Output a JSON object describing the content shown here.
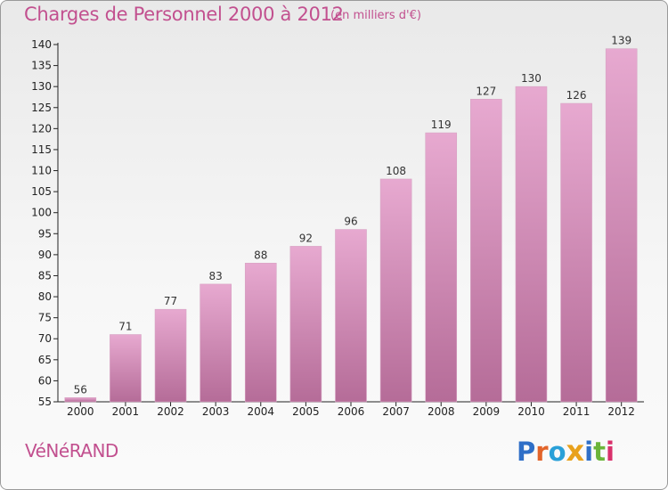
{
  "header": {
    "title": "Charges de Personnel 2000 à 2012",
    "unit_note": "(en milliers d'€)"
  },
  "footer": {
    "commune": "VéNéRAND",
    "brand": "Proxiti"
  },
  "colors": {
    "accent": "#c2508f",
    "bar_top": "#e7a9d0",
    "bar_bottom": "#b56c98",
    "axis": "#222222"
  },
  "chart_data": {
    "type": "bar",
    "title": "Charges de Personnel 2000 à 2012",
    "subtitle": "(en milliers d'€)",
    "categories": [
      "2000",
      "2001",
      "2002",
      "2003",
      "2004",
      "2005",
      "2006",
      "2007",
      "2008",
      "2009",
      "2010",
      "2011",
      "2012"
    ],
    "values": [
      56,
      71,
      77,
      83,
      88,
      92,
      96,
      108,
      119,
      127,
      130,
      126,
      139
    ],
    "ylim": [
      55,
      140
    ],
    "yticks": [
      55,
      60,
      65,
      70,
      75,
      80,
      85,
      90,
      95,
      100,
      105,
      110,
      115,
      120,
      125,
      130,
      135,
      140
    ],
    "grid": false,
    "legend": "none"
  }
}
